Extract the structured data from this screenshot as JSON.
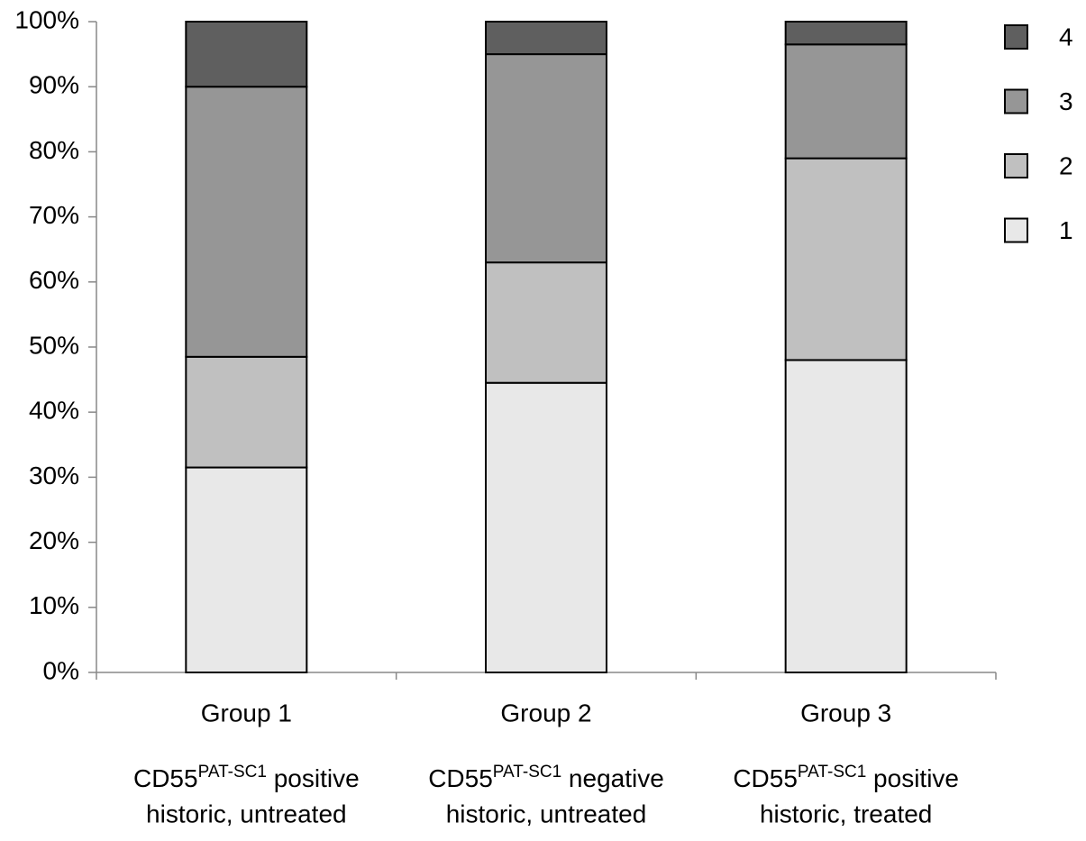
{
  "chart_data": {
    "type": "stacked_bar",
    "categories": [
      "Group 1",
      "Group 2",
      "Group 3"
    ],
    "category_notes": [
      [
        "CD55",
        "PAT-SC1",
        " positive",
        "historic, untreated"
      ],
      [
        "CD55",
        "PAT-SC1",
        " negative",
        "historic, untreated"
      ],
      [
        "CD55",
        "PAT-SC1",
        " positive",
        "historic, treated"
      ]
    ],
    "series": [
      {
        "name": "1",
        "color": "#e8e8e8",
        "values": [
          31.5,
          44.5,
          48
        ]
      },
      {
        "name": "2",
        "color": "#c0c0c0",
        "values": [
          17,
          18.5,
          31
        ]
      },
      {
        "name": "3",
        "color": "#969696",
        "values": [
          41.5,
          32,
          17.5
        ]
      },
      {
        "name": "4",
        "color": "#5f5f5f",
        "values": [
          10,
          5,
          3.5
        ]
      }
    ],
    "ylim": [
      0,
      100
    ],
    "yticks": [
      {
        "value": 0,
        "label": "0%"
      },
      {
        "value": 10,
        "label": "10%"
      },
      {
        "value": 20,
        "label": "20%"
      },
      {
        "value": 30,
        "label": "30%"
      },
      {
        "value": 40,
        "label": "40%"
      },
      {
        "value": 50,
        "label": "50%"
      },
      {
        "value": 60,
        "label": "60%"
      },
      {
        "value": 70,
        "label": "70%"
      },
      {
        "value": 80,
        "label": "80%"
      },
      {
        "value": 90,
        "label": "90%"
      },
      {
        "value": 100,
        "label": "100%"
      }
    ],
    "legend": "right"
  }
}
